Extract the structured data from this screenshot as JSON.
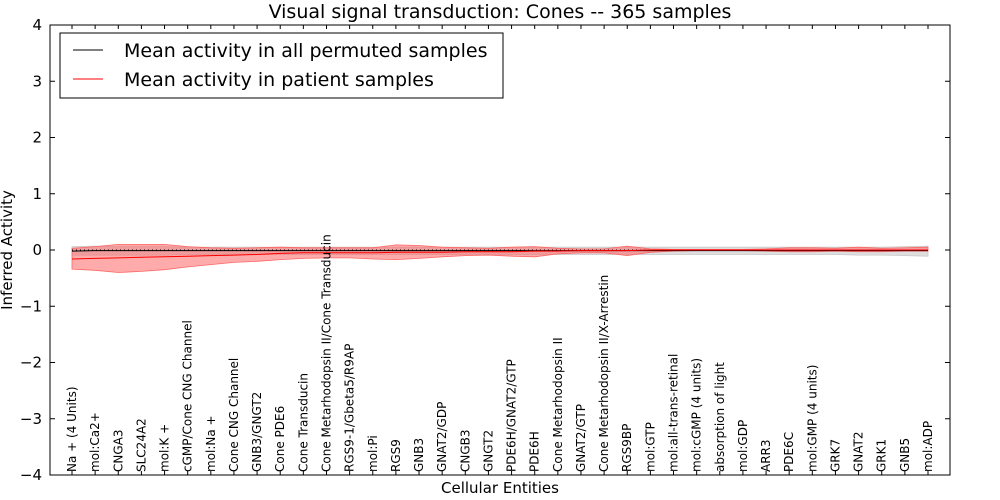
{
  "chart_data": {
    "type": "line",
    "title": "Visual signal transduction: Cones -- 365 samples",
    "xlabel": "Cellular Entities",
    "ylabel": "Inferred Activity",
    "ylim": [
      -4,
      4
    ],
    "yticks": [
      -4,
      -3,
      -2,
      -1,
      0,
      1,
      2,
      3,
      4
    ],
    "ytick_labels": [
      "−4",
      "−3",
      "−2",
      "−1",
      "0",
      "1",
      "2",
      "3",
      "4"
    ],
    "legend_position": "top-left",
    "categories": [
      "Na + (4 Units)",
      "mol:Ca2+",
      "CNGA3",
      "SLC24A2",
      "mol:K +",
      "cGMP/Cone CNG Channel",
      "mol:Na +",
      "Cone CNG Channel",
      "GNB3/GNGT2",
      "Cone PDE6",
      "Cone Transducin",
      "Cone Metarhodopsin II/Cone Transducin",
      "RGS9-1/Gbeta5/R9AP",
      "mol:Pi",
      "RGS9",
      "GNB3",
      "GNAT2/GDP",
      "CNGB3",
      "GNGT2",
      "PDE6H/GNAT2/GTP",
      "PDE6H",
      "Cone Metarhodopsin II",
      "GNAT2/GTP",
      "Cone Metarhodopsin II/X-Arrestin",
      "RGS9BP",
      "mol:GTP",
      "mol:all-trans-retinal",
      "mol:cGMP (4 units)",
      "absorption of light",
      "mol:GDP",
      "ARR3",
      "PDE6C",
      "mol:GMP (4 units)",
      "GRK7",
      "GNAT2",
      "GRK1",
      "GNB5",
      "mol:ADP"
    ],
    "series": [
      {
        "name": "Mean activity in all permuted samples",
        "color": "#000000",
        "band_color": "#c8c8c8",
        "values": [
          -0.02,
          -0.01,
          -0.01,
          -0.01,
          -0.01,
          -0.01,
          -0.01,
          -0.01,
          -0.01,
          -0.01,
          -0.01,
          -0.01,
          -0.01,
          -0.01,
          -0.01,
          -0.01,
          -0.01,
          -0.01,
          -0.01,
          -0.01,
          -0.01,
          -0.01,
          -0.01,
          -0.01,
          -0.01,
          -0.01,
          -0.01,
          -0.01,
          -0.01,
          -0.01,
          -0.01,
          -0.01,
          -0.01,
          -0.01,
          -0.01,
          -0.01,
          -0.01,
          -0.01
        ],
        "upper": [
          0.06,
          0.07,
          0.06,
          0.06,
          0.06,
          0.05,
          0.05,
          0.05,
          0.05,
          0.05,
          0.05,
          0.05,
          0.05,
          0.05,
          0.05,
          0.05,
          0.05,
          0.05,
          0.05,
          0.05,
          0.05,
          0.05,
          0.05,
          0.05,
          0.05,
          0.05,
          0.05,
          0.05,
          0.05,
          0.05,
          0.05,
          0.05,
          0.05,
          0.05,
          0.05,
          0.05,
          0.06,
          0.07
        ],
        "lower": [
          -0.09,
          -0.09,
          -0.09,
          -0.09,
          -0.09,
          -0.08,
          -0.08,
          -0.08,
          -0.08,
          -0.08,
          -0.08,
          -0.08,
          -0.08,
          -0.08,
          -0.08,
          -0.08,
          -0.08,
          -0.08,
          -0.08,
          -0.08,
          -0.08,
          -0.08,
          -0.08,
          -0.08,
          -0.08,
          -0.08,
          -0.08,
          -0.08,
          -0.08,
          -0.08,
          -0.08,
          -0.08,
          -0.08,
          -0.08,
          -0.09,
          -0.09,
          -0.1,
          -0.11
        ]
      },
      {
        "name": "Mean activity in patient samples",
        "color": "#ff0000",
        "band_color": "#ff6666",
        "values": [
          -0.16,
          -0.15,
          -0.14,
          -0.13,
          -0.12,
          -0.11,
          -0.1,
          -0.09,
          -0.08,
          -0.06,
          -0.05,
          -0.05,
          -0.05,
          -0.05,
          -0.04,
          -0.04,
          -0.04,
          -0.03,
          -0.03,
          -0.03,
          -0.02,
          -0.02,
          -0.01,
          -0.01,
          -0.01,
          0,
          0,
          0,
          0,
          0,
          0,
          0,
          0,
          0,
          0,
          0,
          0,
          0
        ],
        "upper": [
          0.03,
          0.06,
          0.1,
          0.1,
          0.1,
          0.06,
          0.04,
          0.03,
          0.04,
          0.05,
          0.04,
          0.04,
          0.04,
          0.04,
          0.09,
          0.08,
          0.05,
          0.04,
          0.03,
          0.05,
          0.06,
          0.03,
          0.02,
          0.02,
          0.07,
          0.02,
          0.01,
          0.01,
          0.01,
          0.01,
          0.02,
          0.04,
          0.04,
          0.03,
          0.05,
          0.03,
          0.04,
          0.05
        ],
        "lower": [
          -0.34,
          -0.36,
          -0.4,
          -0.38,
          -0.35,
          -0.3,
          -0.26,
          -0.22,
          -0.2,
          -0.17,
          -0.15,
          -0.14,
          -0.14,
          -0.16,
          -0.17,
          -0.15,
          -0.12,
          -0.1,
          -0.09,
          -0.11,
          -0.12,
          -0.07,
          -0.05,
          -0.05,
          -0.1,
          -0.04,
          -0.02,
          -0.01,
          -0.01,
          -0.01,
          -0.02,
          -0.03,
          -0.03,
          -0.02,
          -0.03,
          -0.03,
          -0.02,
          -0.02
        ]
      }
    ]
  }
}
